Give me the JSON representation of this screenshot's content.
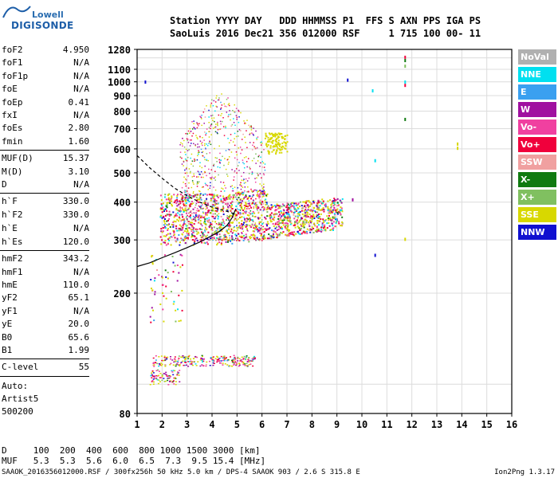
{
  "logo": {
    "top": "Lowell",
    "bottom": "DIGISONDE",
    "icon": "digisonde-logo-icon"
  },
  "header": {
    "line1": "Station YYYY DAY   DDD HHMMSS P1  FFS S AXN PPS IGA PS",
    "line2": "SaoLuis 2016 Dec21 356 012000 RSF     1 715 100 00- 11"
  },
  "params": {
    "group1": [
      {
        "name": "foF2",
        "value": "4.950"
      },
      {
        "name": "foF1",
        "value": "N/A"
      },
      {
        "name": "foF1p",
        "value": "N/A"
      },
      {
        "name": "foE",
        "value": "N/A"
      },
      {
        "name": "foEp",
        "value": "0.41"
      },
      {
        "name": "fxI",
        "value": "N/A"
      },
      {
        "name": "foEs",
        "value": "2.80"
      },
      {
        "name": "fmin",
        "value": "1.60"
      }
    ],
    "group2": [
      {
        "name": "MUF(D)",
        "value": "15.37"
      },
      {
        "name": "M(D)",
        "value": "3.10"
      },
      {
        "name": "D",
        "value": "N/A"
      }
    ],
    "group3": [
      {
        "name": "h`F",
        "value": "330.0"
      },
      {
        "name": "h`F2",
        "value": "330.0"
      },
      {
        "name": "h`E",
        "value": "N/A"
      },
      {
        "name": "h`Es",
        "value": "120.0"
      }
    ],
    "group4": [
      {
        "name": "hmF2",
        "value": "343.2"
      },
      {
        "name": "hmF1",
        "value": "N/A"
      },
      {
        "name": "hmE",
        "value": "110.0"
      },
      {
        "name": "yF2",
        "value": "65.1"
      },
      {
        "name": "yF1",
        "value": "N/A"
      },
      {
        "name": "yE",
        "value": "20.0"
      },
      {
        "name": "B0",
        "value": "65.6"
      },
      {
        "name": "B1",
        "value": "1.99"
      }
    ],
    "group5": [
      {
        "name": "C-level",
        "value": "55"
      }
    ],
    "auto": [
      "Auto:",
      "Artist5",
      "500200"
    ]
  },
  "legend": [
    {
      "label": "NoVal",
      "color": "#b0b0b0"
    },
    {
      "label": "NNE",
      "color": "#00e0f0"
    },
    {
      "label": "E",
      "color": "#3aa0f0"
    },
    {
      "label": "W",
      "color": "#a010a0"
    },
    {
      "label": "Vo-",
      "color": "#f040a0"
    },
    {
      "label": "Vo+",
      "color": "#f0003c"
    },
    {
      "label": "SSW",
      "color": "#f0a0a0"
    },
    {
      "label": "X-",
      "color": "#107a10"
    },
    {
      "label": "X+",
      "color": "#80c060"
    },
    {
      "label": "SSE",
      "color": "#d8d800"
    },
    {
      "label": "NNW",
      "color": "#1010d0"
    }
  ],
  "dmuf": {
    "d_line": "D     100  200  400  600  800 1000 1500 3000 [km]",
    "muf_line": "MUF   5.3  5.3  5.6  6.0  6.5  7.3  9.5 15.4 [MHz]"
  },
  "footer": {
    "text": "SAAOK_2016356012000.RSF / 300fx256h 50 kHz 5.0 km / DPS-4 SAAOK 903 / 2.6 S 315.8 E",
    "version": "Ion2Png 1.3.17"
  },
  "chart_data": {
    "type": "scatter",
    "xlabel": "",
    "ylabel": "",
    "xlim": [
      1,
      16
    ],
    "ylim": [
      80,
      1280
    ],
    "y_scale": "log",
    "grid": true,
    "x_ticks": [
      1,
      2,
      3,
      4,
      5,
      6,
      7,
      8,
      9,
      10,
      11,
      12,
      13,
      14,
      15,
      16
    ],
    "y_ticks": [
      80,
      200,
      300,
      400,
      500,
      600,
      700,
      800,
      900,
      1000,
      1100,
      1280
    ],
    "profile_solid": {
      "x": [
        1.0,
        1.5,
        2.0,
        2.5,
        3.0,
        3.5,
        4.0,
        4.3,
        4.6,
        4.8,
        4.95
      ],
      "y": [
        245,
        252,
        262,
        272,
        283,
        295,
        310,
        320,
        335,
        355,
        380
      ]
    },
    "profile_dashed": {
      "x": [
        1.0,
        1.5,
        2.0,
        2.5,
        3.0,
        3.5,
        4.0,
        4.5,
        4.95
      ],
      "y": [
        570,
        520,
        480,
        445,
        420,
        400,
        385,
        375,
        365
      ]
    }
  }
}
